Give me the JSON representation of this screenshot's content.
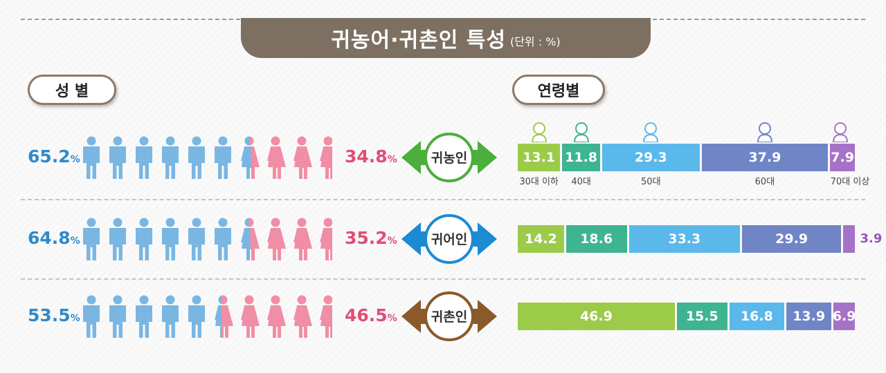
{
  "title": "귀농어·귀촌인 특성",
  "unit": "(단위 : %)",
  "section_gender": "성 별",
  "section_age": "연령별",
  "percent_sign": "%",
  "chart_data": [
    {
      "type": "bar",
      "title": "성 별",
      "categories": [
        "귀농인",
        "귀어인",
        "귀촌인"
      ],
      "series": [
        {
          "name": "male",
          "values": [
            65.2,
            64.8,
            53.5
          ],
          "color": "#7ab6e2"
        },
        {
          "name": "female",
          "values": [
            34.8,
            35.2,
            46.5
          ],
          "color": "#f08ea5"
        }
      ]
    },
    {
      "type": "bar",
      "stacked": true,
      "title": "연령별",
      "categories": [
        "귀농인",
        "귀어인",
        "귀촌인"
      ],
      "age_labels": [
        "30대 이하",
        "40대",
        "50대",
        "60대",
        "70대 이상"
      ],
      "series": [
        {
          "name": "30대 이하",
          "values": [
            13.1,
            14.2,
            46.9
          ],
          "color": "#9ccb4a"
        },
        {
          "name": "40대",
          "values": [
            11.8,
            18.6,
            15.5
          ],
          "color": "#3fb491"
        },
        {
          "name": "50대",
          "values": [
            29.3,
            33.3,
            16.8
          ],
          "color": "#5bb8ea"
        },
        {
          "name": "60대",
          "values": [
            37.9,
            29.9,
            13.9
          ],
          "color": "#6f85c6"
        },
        {
          "name": "70대 이상",
          "values": [
            7.9,
            3.9,
            6.9
          ],
          "color": "#a672c7"
        }
      ]
    }
  ],
  "rows": [
    {
      "label": "귀농인",
      "male_text": "65.2",
      "female_text": "34.8",
      "color": "#4cae3c"
    },
    {
      "label": "귀어인",
      "male_text": "64.8",
      "female_text": "35.2",
      "color": "#1b8bd3"
    },
    {
      "label": "귀촌인",
      "male_text": "53.5",
      "female_text": "46.5",
      "color": "#8a5a2b"
    }
  ]
}
